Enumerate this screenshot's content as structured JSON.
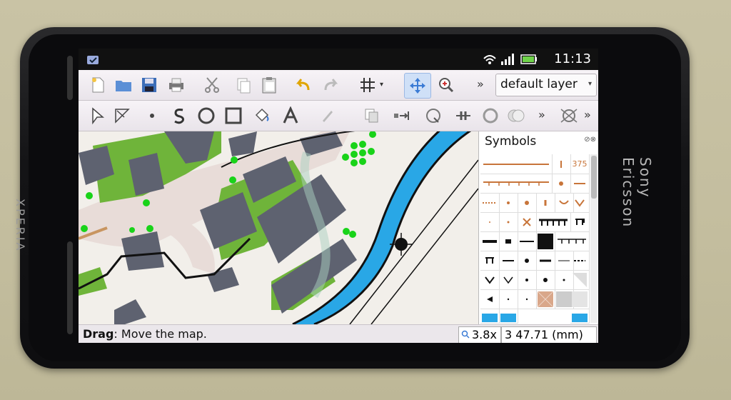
{
  "device": {
    "brand_left": "XPERIA",
    "brand_right": "Sony Ericsson",
    "hw_keys": [
      "back",
      "home",
      "menu"
    ]
  },
  "status_bar": {
    "time": "11:13",
    "icons": [
      "notification-icon",
      "wifi-icon",
      "signal-icon",
      "battery-icon"
    ]
  },
  "toolbar": {
    "row1_tools": [
      "new-file-icon",
      "open-folder-icon",
      "save-icon",
      "print-icon",
      "cut-icon",
      "copy-icon",
      "paste-icon",
      "undo-icon",
      "redo-icon",
      "grid-icon",
      "pan-move-icon",
      "zoom-icon"
    ],
    "more_label": "»",
    "layer": {
      "selected": "default layer"
    },
    "row2_tools": [
      "edit-tool-icon",
      "edit-line-icon",
      "draw-point-icon",
      "draw-path-icon",
      "draw-circle-icon",
      "draw-rectangle-icon",
      "fill-icon",
      "text-icon",
      "pen-icon",
      "duplicate-icon",
      "switch-symbol-icon",
      "rotate-icon",
      "cut-tool-icon",
      "circle-tool-icon",
      "boolean-icon",
      "compass-icon"
    ]
  },
  "symbols_panel": {
    "title": "Symbols",
    "label_375": "375"
  },
  "bottom_bar": {
    "hint_key": "Drag",
    "hint_text": ": Move the map.",
    "zoom": "3.8x",
    "coordinates": "3 47.71 (mm)"
  },
  "colors": {
    "map_building": "#5e6270",
    "map_green": "#6fb43a",
    "map_water": "#29a7e6",
    "map_road": "#e6d9d6",
    "accent_blue": "#3a7bd5"
  }
}
